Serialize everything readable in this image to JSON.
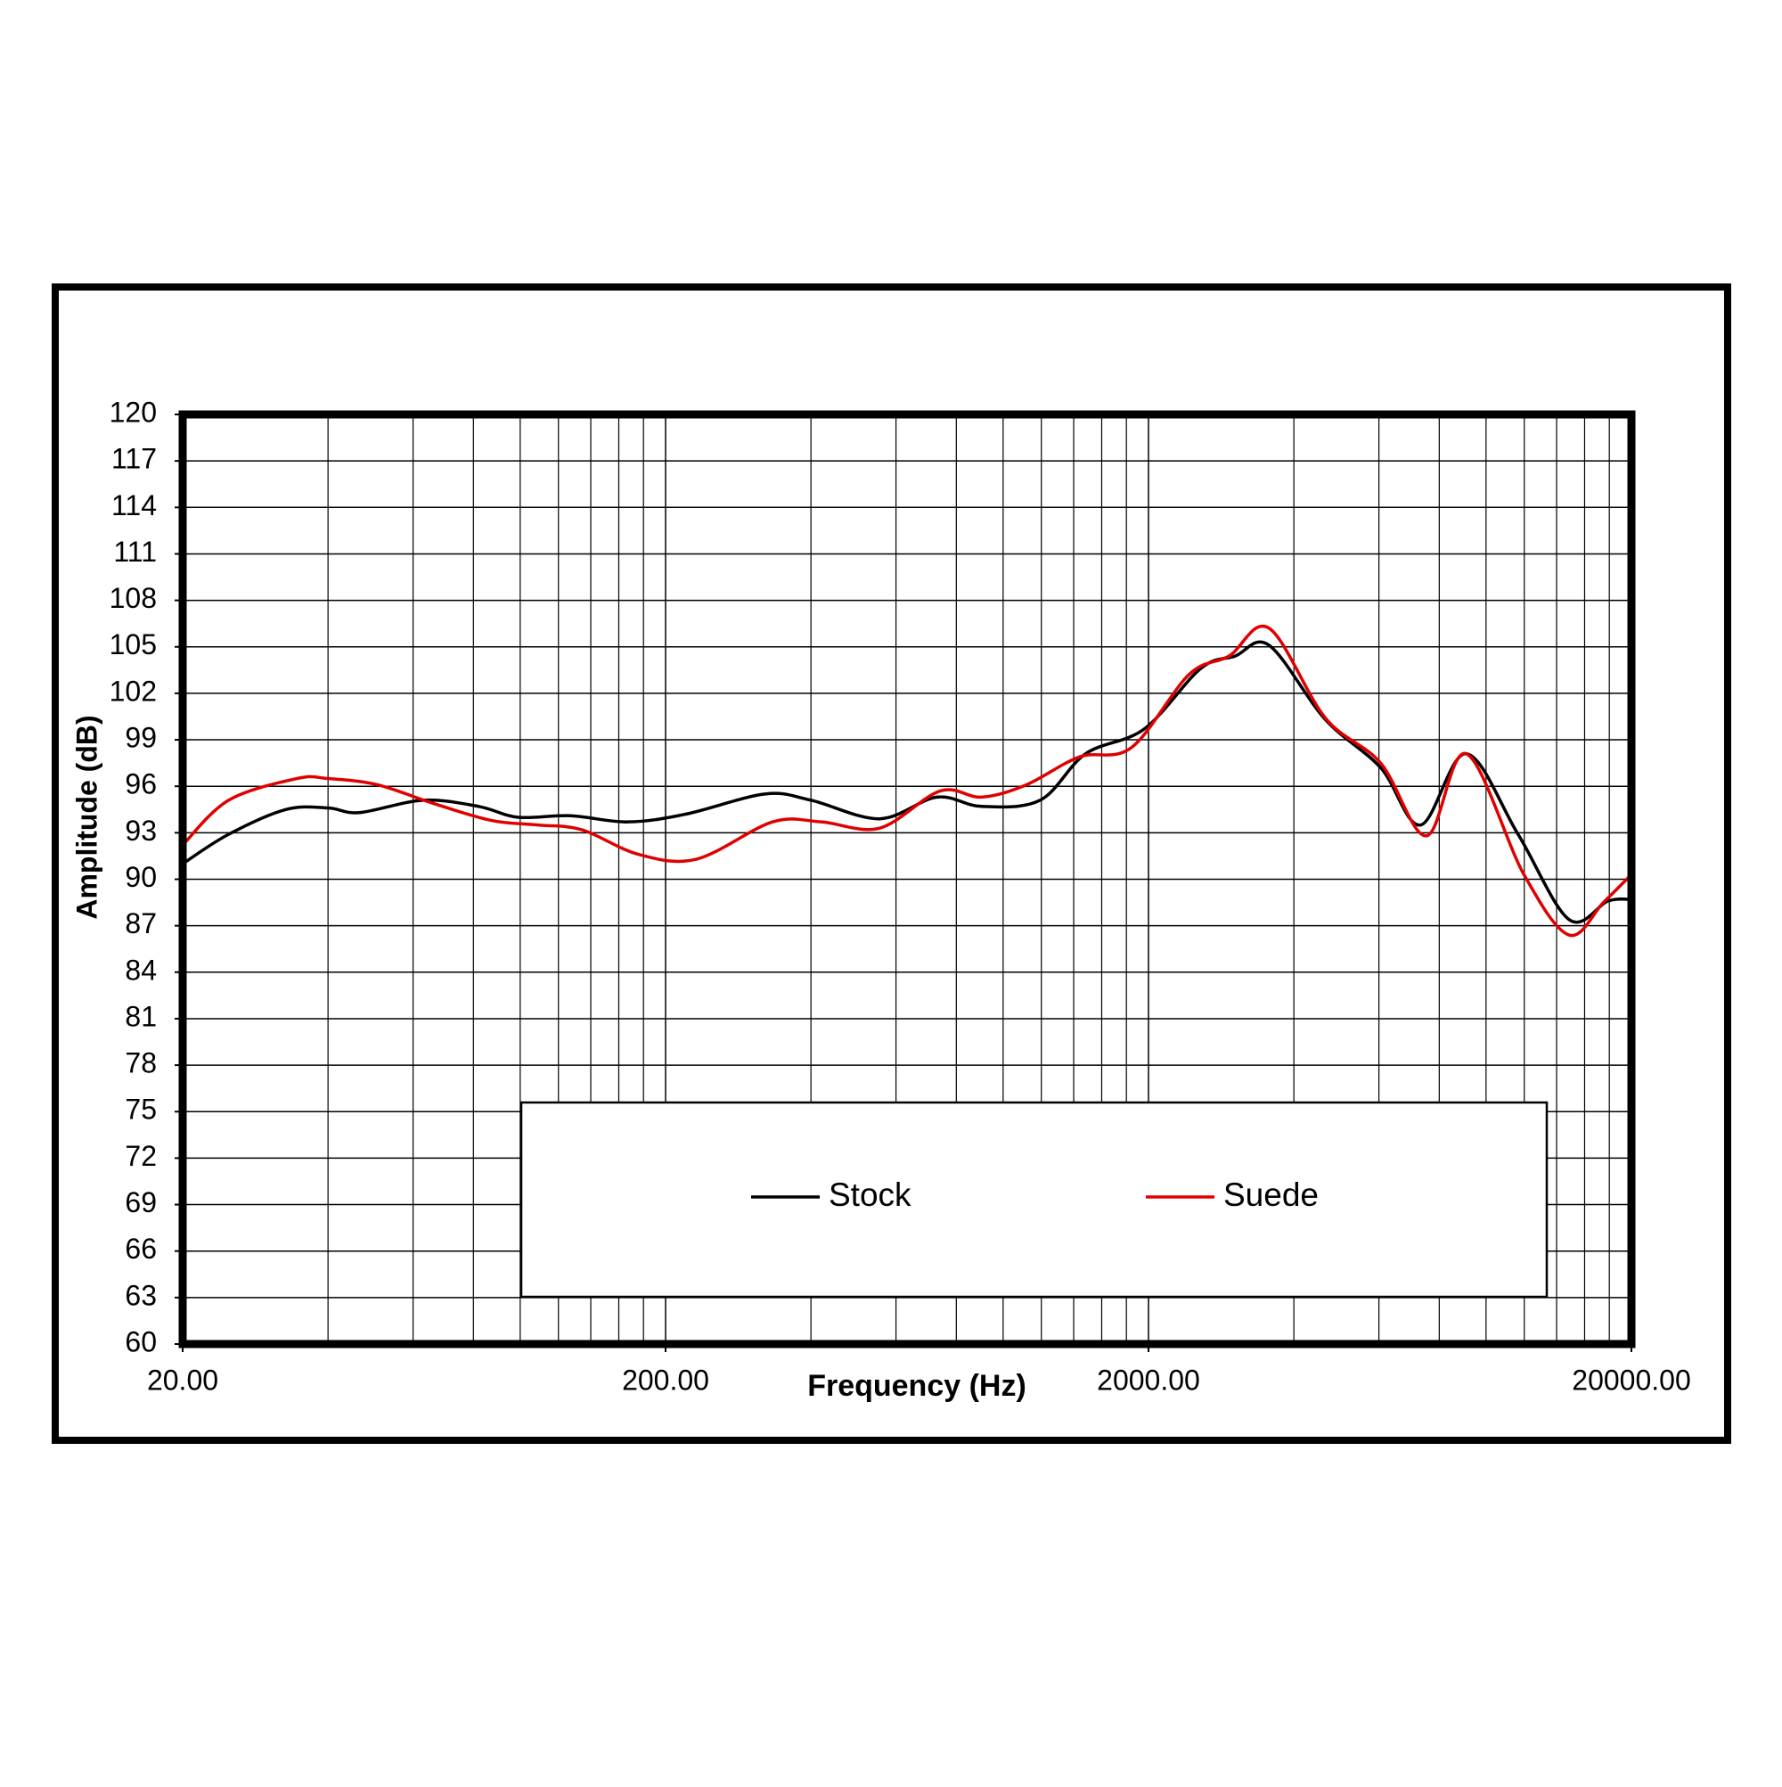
{
  "chart_data": {
    "type": "line",
    "x_label": "Frequency (Hz)",
    "y_label": "Amplitude (dB)",
    "x_scale": "log",
    "grid": true,
    "legend": "bottom",
    "xlim": [
      20,
      20000
    ],
    "ylim": [
      60,
      120
    ],
    "xticks": [
      {
        "value": 20,
        "label": "20.00"
      },
      {
        "value": 200,
        "label": "200.00"
      },
      {
        "value": 2000,
        "label": "2000.00"
      },
      {
        "value": 20000,
        "label": "20000.00"
      }
    ],
    "yticks": [
      60,
      63,
      66,
      69,
      72,
      75,
      78,
      81,
      84,
      87,
      90,
      93,
      96,
      99,
      102,
      105,
      108,
      111,
      114,
      117,
      120
    ],
    "series": [
      {
        "name": "Stock",
        "color": "#000000",
        "x": [
          20,
          24.9,
          32.7,
          40,
          46.5,
          62.9,
          82,
          99,
          127,
          167,
          220,
          321,
          400,
          555,
          729,
          903,
          1193,
          1482,
          1960,
          2564,
          3020,
          3555,
          4650,
          6050,
          7320,
          9100,
          11650,
          14850,
          17900,
          20000
        ],
        "values": [
          91.0,
          92.9,
          94.5,
          94.6,
          94.3,
          95.1,
          94.7,
          94.0,
          94.1,
          93.7,
          94.2,
          95.5,
          95.1,
          93.9,
          95.3,
          94.7,
          95.1,
          98.1,
          99.7,
          103.6,
          104.4,
          105.1,
          100.3,
          97.2,
          93.5,
          98.1,
          92.9,
          87.4,
          88.6,
          88.7
        ]
      },
      {
        "name": "Suede",
        "color": "#e00000",
        "x": [
          20,
          24.9,
          34.5,
          40,
          50.6,
          66,
          87,
          108.6,
          134,
          176,
          232,
          333,
          420,
          555,
          741,
          903,
          1118,
          1440,
          1844,
          2424,
          2935,
          3555,
          4650,
          6050,
          7530,
          9100,
          11980,
          14850,
          17500,
          20000
        ],
        "values": [
          92.2,
          95.1,
          96.5,
          96.5,
          96.1,
          94.9,
          93.8,
          93.5,
          93.2,
          91.6,
          91.3,
          93.7,
          93.7,
          93.3,
          95.7,
          95.3,
          96.1,
          97.9,
          98.5,
          103.2,
          104.4,
          106.2,
          100.4,
          97.5,
          92.8,
          98.1,
          90.3,
          86.4,
          88.5,
          90.3
        ]
      }
    ]
  }
}
